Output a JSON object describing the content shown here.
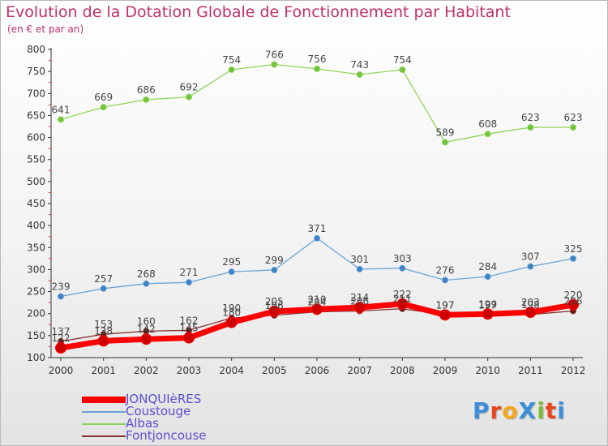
{
  "header": {
    "title": "Evolution de la Dotation Globale de Fonctionnement par Habitant",
    "subtitle": "(en € et par an)"
  },
  "logo": {
    "text": "ProXiti",
    "letter_colors": [
      "#3a8fd8",
      "#e8451f",
      "#f2a81a",
      "#3a8fd8",
      "#7bbd3b",
      "#e8451f",
      "#3a8fd8"
    ]
  },
  "chart_data": {
    "type": "line",
    "title": "Evolution de la Dotation Globale de Fonctionnement par Habitant",
    "subtitle": "(en € et par an)",
    "xlabel": "",
    "ylabel": "",
    "x": [
      "2000",
      "2001",
      "2002",
      "2003",
      "2004",
      "2005",
      "2006",
      "2007",
      "2008",
      "2009",
      "2010",
      "2011",
      "2012"
    ],
    "ylim": [
      100,
      800
    ],
    "yticks": [
      100,
      150,
      200,
      250,
      300,
      350,
      400,
      450,
      500,
      550,
      600,
      650,
      700,
      750,
      800
    ],
    "grid": false,
    "legend_position": "bottom-left",
    "series": [
      {
        "name": "JONQUIèRES",
        "color": "#ff0000",
        "point_color": "#cc0000",
        "line_width": 7,
        "marker_radius": 6.5,
        "values": [
          122,
          138,
          142,
          145,
          180,
          205,
          210,
          214,
          222,
          197,
          199,
          203,
          220
        ],
        "show_labels": true
      },
      {
        "name": "Coustouge",
        "color": "#6aa4d6",
        "point_color": "#3a82c4",
        "line_width": 1.3,
        "marker_radius": 3.5,
        "values": [
          239,
          257,
          268,
          271,
          295,
          299,
          371,
          301,
          303,
          276,
          284,
          307,
          325
        ],
        "show_labels": true
      },
      {
        "name": "Albas",
        "color": "#8fd45a",
        "point_color": "#72c23b",
        "line_width": 1.3,
        "marker_radius": 3.5,
        "values": [
          641,
          669,
          686,
          692,
          754,
          766,
          756,
          743,
          754,
          589,
          608,
          623,
          623
        ],
        "show_labels": true
      },
      {
        "name": "Fontjoncouse",
        "color": "#8a3030",
        "point_color": "#5e1a1a",
        "line_width": 1.3,
        "marker_radius": 3.5,
        "values": [
          137,
          153,
          160,
          162,
          190,
          196,
          204,
          206,
          211,
          197,
          197,
          198,
          206
        ],
        "show_labels": true
      }
    ]
  }
}
